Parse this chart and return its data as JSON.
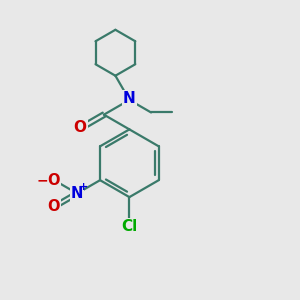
{
  "background_color": "#e8e8e8",
  "bond_color": "#3a7a6a",
  "bond_width": 1.6,
  "atom_colors": {
    "O": "#cc0000",
    "N": "#0000dd",
    "Cl": "#00aa00",
    "C": "#3a7a6a"
  },
  "fig_size": [
    3.0,
    3.0
  ],
  "dpi": 100
}
